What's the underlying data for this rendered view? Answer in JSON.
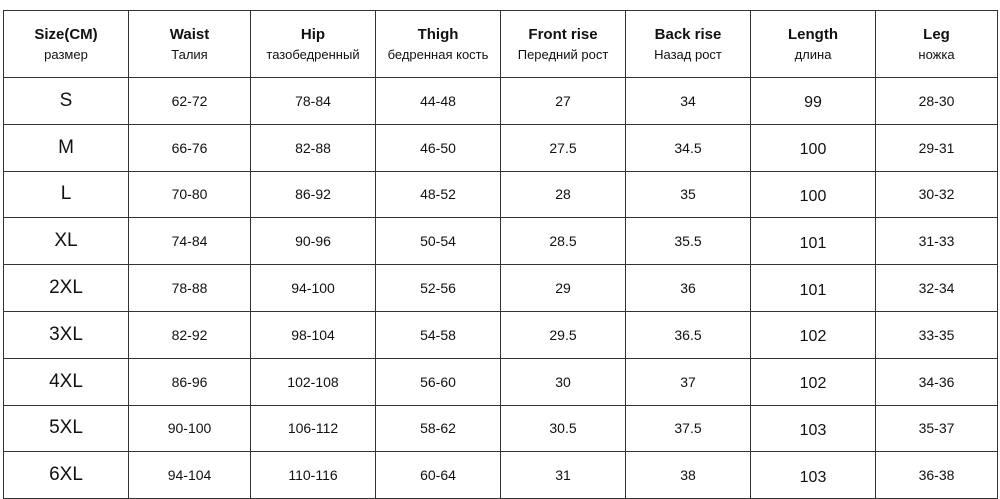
{
  "table": {
    "header": [
      {
        "title": "Size(CM)",
        "subtitle": "размер"
      },
      {
        "title": "Waist",
        "subtitle": "Талия"
      },
      {
        "title": "Hip",
        "subtitle": "тазобедренный"
      },
      {
        "title": "Thigh",
        "subtitle": "бедренная кость"
      },
      {
        "title": "Front rise",
        "subtitle": "Передний рост"
      },
      {
        "title": "Back rise",
        "subtitle": "Назад рост"
      },
      {
        "title": "Length",
        "subtitle": "длина"
      },
      {
        "title": "Leg",
        "subtitle": "ножка"
      }
    ],
    "rows": [
      [
        "S",
        "62-72",
        "78-84",
        "44-48",
        "27",
        "34",
        "99",
        "28-30"
      ],
      [
        "M",
        "66-76",
        "82-88",
        "46-50",
        "27.5",
        "34.5",
        "100",
        "29-31"
      ],
      [
        "L",
        "70-80",
        "86-92",
        "48-52",
        "28",
        "35",
        "100",
        "30-32"
      ],
      [
        "XL",
        "74-84",
        "90-96",
        "50-54",
        "28.5",
        "35.5",
        "101",
        "31-33"
      ],
      [
        "2XL",
        "78-88",
        "94-100",
        "52-56",
        "29",
        "36",
        "101",
        "32-34"
      ],
      [
        "3XL",
        "82-92",
        "98-104",
        "54-58",
        "29.5",
        "36.5",
        "102",
        "33-35"
      ],
      [
        "4XL",
        "86-96",
        "102-108",
        "56-60",
        "30",
        "37",
        "102",
        "34-36"
      ],
      [
        "5XL",
        "90-100",
        "106-112",
        "58-62",
        "30.5",
        "37.5",
        "103",
        "35-37"
      ],
      [
        "6XL",
        "94-104",
        "110-116",
        "60-64",
        "31",
        "38",
        "103",
        "36-38"
      ]
    ]
  }
}
